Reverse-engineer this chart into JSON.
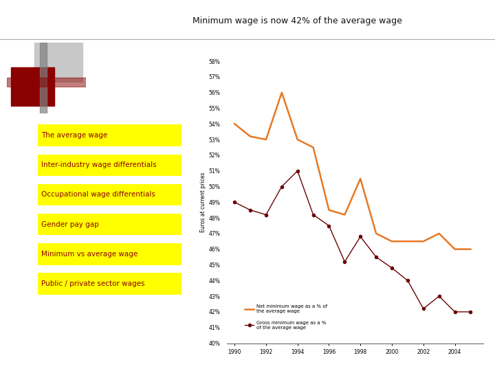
{
  "title": "Minimum wage is now 42% of the average wage",
  "ylabel": "Euros at current prices",
  "years_net": [
    1990,
    1991,
    1992,
    1993,
    1994,
    1995,
    1996,
    1997,
    1998,
    1999,
    2000,
    2001,
    2002,
    2003,
    2004,
    2005
  ],
  "net_values": [
    54.0,
    53.2,
    53.0,
    56.0,
    53.0,
    52.5,
    48.5,
    48.2,
    50.5,
    47.0,
    46.5,
    46.5,
    46.5,
    47.0,
    46.0,
    46.0
  ],
  "years_gross": [
    1990,
    1991,
    1992,
    1993,
    1994,
    1995,
    1996,
    1997,
    1998,
    1999,
    2000,
    2001,
    2002,
    2003,
    2004,
    2005
  ],
  "gross_values": [
    49.0,
    48.5,
    48.2,
    50.0,
    51.0,
    48.2,
    47.5,
    45.2,
    46.8,
    45.5,
    44.8,
    44.0,
    42.2,
    43.0,
    42.0,
    42.0
  ],
  "net_color": "#E87722",
  "gross_color": "#6B0000",
  "legend_net": "Net minimum wage as a % of\nthe average wage",
  "legend_gross": "Gross minimum wage as a %\nof the average wage",
  "ylim_min": 40,
  "ylim_max": 58,
  "xticks": [
    1990,
    1992,
    1994,
    1996,
    1998,
    2000,
    2002,
    2004
  ],
  "background_color": "#ffffff",
  "nav_labels": [
    "The average wage",
    "Inter-industry wage differentials",
    "Occupational wage differentials",
    "Gender pay gap",
    "Minimum vs average wage",
    "Public / private sector wages"
  ],
  "nav_underline": [
    true,
    true,
    true,
    true,
    false,
    true
  ],
  "nav_bg": "#FFFF00",
  "nav_fg": "#8B0000",
  "title_fontsize": 9,
  "tick_fontsize": 5.5,
  "ylabel_fontsize": 5.5,
  "legend_fontsize": 5.0,
  "nav_fontsize": 7.5
}
